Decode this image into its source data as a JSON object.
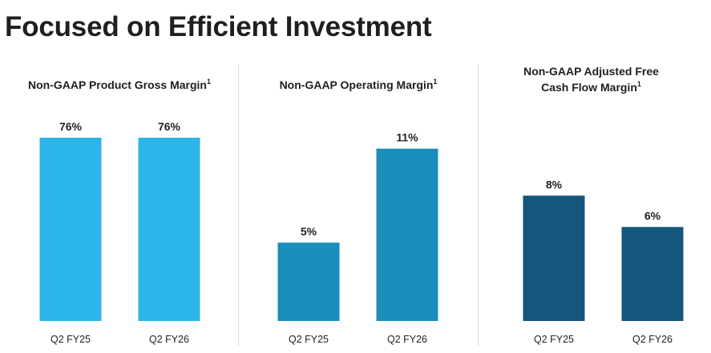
{
  "page": {
    "title": "Focused on Efficient Investment"
  },
  "chart_data": [
    {
      "type": "bar",
      "title_lines": [
        "Non-GAAP Product Gross Margin"
      ],
      "footnote": "1",
      "categories": [
        "Q2 FY25",
        "Q2 FY26"
      ],
      "values": [
        76,
        76
      ],
      "labels": [
        "76%",
        "76%"
      ],
      "unit": "%",
      "color": "#2bb5e8",
      "xlabel": "",
      "ylabel": "",
      "ylim": [
        0,
        76
      ]
    },
    {
      "type": "bar",
      "title_lines": [
        "Non-GAAP Operating Margin"
      ],
      "footnote": "1",
      "categories": [
        "Q2 FY25",
        "Q2 FY26"
      ],
      "values": [
        5,
        11
      ],
      "labels": [
        "5%",
        "11%"
      ],
      "unit": "%",
      "color": "#1a8eba",
      "xlabel": "",
      "ylabel": "",
      "ylim": [
        0,
        11.7
      ]
    },
    {
      "type": "bar",
      "title_lines": [
        "Non-GAAP Adjusted Free",
        "Cash Flow Margin"
      ],
      "footnote": "1",
      "categories": [
        "Q2 FY25",
        "Q2 FY26"
      ],
      "values": [
        8,
        6
      ],
      "labels": [
        "8%",
        "6%"
      ],
      "unit": "%",
      "color": "#14567c",
      "xlabel": "",
      "ylabel": "",
      "ylim": [
        0,
        11.7
      ]
    }
  ]
}
